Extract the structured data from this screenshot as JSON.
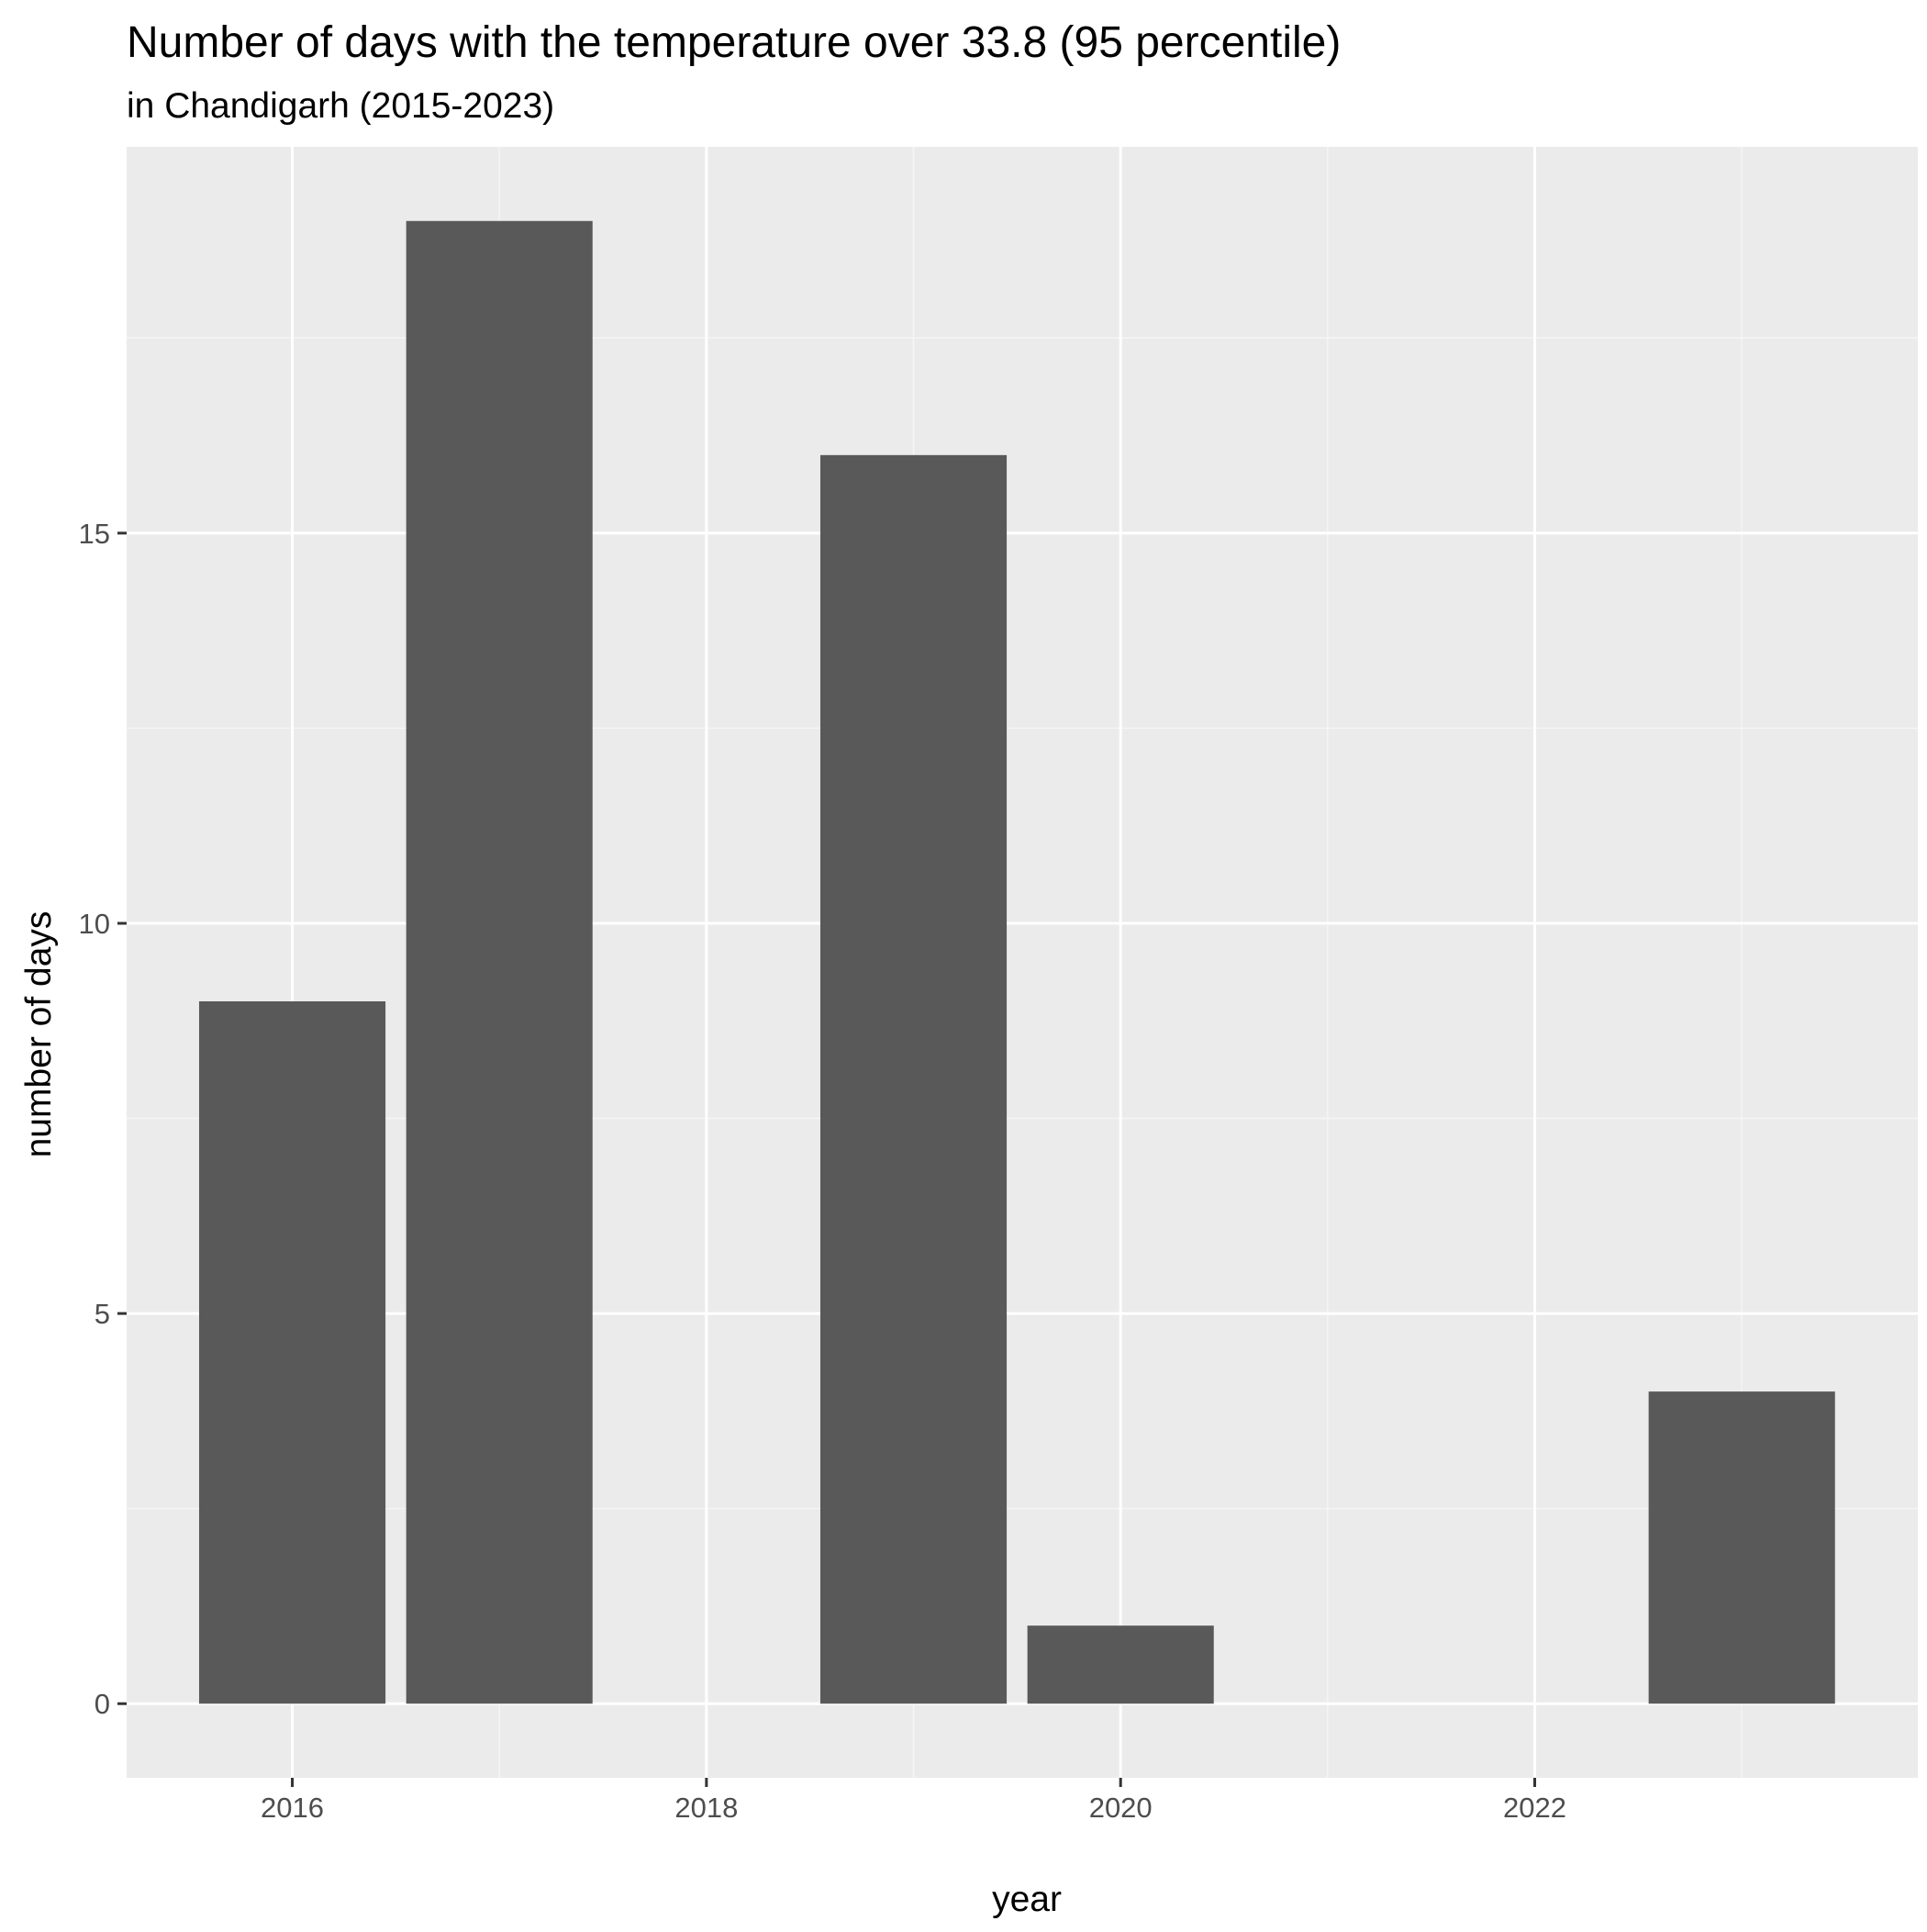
{
  "chart_data": {
    "type": "bar",
    "title": "Number of days with the temperature over 33.8 (95 percentile)",
    "subtitle": "in Chandigarh (2015-2023)",
    "xlabel": "year",
    "ylabel": "number of days",
    "x": [
      2016,
      2017,
      2019,
      2020,
      2023
    ],
    "values": [
      9,
      19,
      16,
      1,
      4
    ],
    "xlim": [
      2015.2,
      2023.85
    ],
    "ylim": [
      -0.95,
      19.95
    ],
    "x_ticks": [
      2016,
      2018,
      2020,
      2022
    ],
    "y_ticks": [
      0,
      5,
      10,
      15
    ],
    "grid": true,
    "colors": {
      "bar": "#595959",
      "panel": "#ebebeb",
      "grid_major": "#ffffff",
      "grid_minor": "#f5f5f5",
      "tick_text": "#4d4d4d",
      "text": "#000000"
    }
  }
}
